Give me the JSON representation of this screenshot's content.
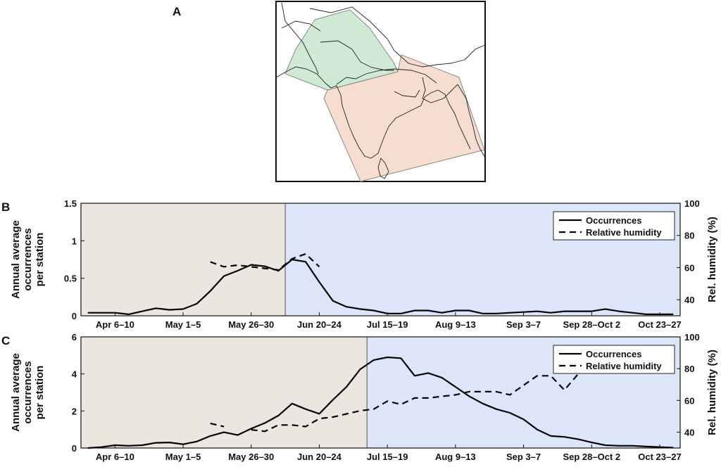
{
  "panels": {
    "a": {
      "letter": "A",
      "map": {
        "region_north_color": "#cfe9d4",
        "region_south_color": "#f7ddd0"
      }
    },
    "b": {
      "letter": "B"
    },
    "c": {
      "letter": "C"
    }
  },
  "chart_data": [
    {
      "type": "line",
      "panel": "B",
      "ylabel_lines": [
        "Annual average",
        "occurrences",
        "per station"
      ],
      "y2label": "Rel. humidity (%)",
      "ylim": [
        0,
        1.5
      ],
      "y2lim": [
        30,
        100
      ],
      "y_ticks": [
        "0",
        "0.5",
        "1",
        "1.5"
      ],
      "y_tick_values": [
        0,
        0.5,
        1,
        1.5
      ],
      "y2_ticks": [
        "40",
        "60",
        "80",
        "100"
      ],
      "y2_tick_values": [
        40,
        60,
        80,
        100
      ],
      "x_ticks": [
        "Apr 6–10",
        "May 1–5",
        "May 26–30",
        "Jun 20–24",
        "Jul 15–19",
        "Aug 9–13",
        "Sep 3–7",
        "Sep 28–Oct 2",
        "Oct 23–27"
      ],
      "x_tick_index": [
        2,
        7,
        12,
        17,
        22,
        27,
        32,
        37,
        42
      ],
      "period_count": 44,
      "shading": {
        "split_index": 14.5,
        "pre_color": "#ebe6e0",
        "post_color": "#dde5f8"
      },
      "legend": {
        "position": "top-right",
        "entries": [
          "Occurrences",
          "Relative humidity"
        ]
      },
      "series": [
        {
          "name": "Occurrences",
          "style": "solid",
          "values": [
            0.04,
            0.04,
            0.04,
            0.02,
            0.06,
            0.1,
            0.08,
            0.09,
            0.16,
            0.33,
            0.53,
            0.6,
            0.68,
            0.66,
            0.6,
            0.75,
            0.72,
            0.45,
            0.2,
            0.12,
            0.09,
            0.07,
            0.03,
            0.03,
            0.07,
            0.07,
            0.04,
            0.07,
            0.07,
            0.03,
            0.03,
            0.04,
            0.05,
            0.06,
            0.04,
            0.06,
            0.06,
            0.06,
            0.09,
            0.06,
            0.04,
            0.02,
            0.02,
            0.02
          ]
        },
        {
          "name": "Relative humidity",
          "style": "dashed",
          "start_index": 9,
          "values": [
            63.5,
            60.5,
            61.5,
            60.5,
            59.5,
            58.5,
            65.5,
            68.5,
            60.5
          ]
        }
      ]
    },
    {
      "type": "line",
      "panel": "C",
      "ylabel_lines": [
        "Annual average",
        "occurrences",
        "per station"
      ],
      "y2label": "Rel. humidity (%)",
      "ylim": [
        0,
        6
      ],
      "y2lim": [
        30,
        100
      ],
      "y_ticks": [
        "0",
        "2",
        "4",
        "6"
      ],
      "y_tick_values": [
        0,
        2,
        4,
        6
      ],
      "y2_ticks": [
        "40",
        "60",
        "80",
        "100"
      ],
      "y2_tick_values": [
        40,
        60,
        80,
        100
      ],
      "x_ticks": [
        "Apr 6–10",
        "May 1–5",
        "May 26–30",
        "Jun 20–24",
        "Jul 15–19",
        "Aug 9–13",
        "Sep 3–7",
        "Sep 28–Oct 2",
        "Oct 23–27"
      ],
      "x_tick_index": [
        2,
        7,
        12,
        17,
        22,
        27,
        32,
        37,
        42
      ],
      "period_count": 44,
      "shading": {
        "split_index": 20.5,
        "pre_color": "#ebe6e0",
        "post_color": "#dde5f8"
      },
      "legend": {
        "position": "top-right",
        "entries": [
          "Occurrences",
          "Relative humidity"
        ]
      },
      "series": [
        {
          "name": "Occurrences",
          "style": "solid",
          "values": [
            0.0,
            0.05,
            0.15,
            0.12,
            0.15,
            0.28,
            0.3,
            0.2,
            0.35,
            0.65,
            0.85,
            0.7,
            1.05,
            1.35,
            1.75,
            2.4,
            2.1,
            1.85,
            2.6,
            3.3,
            4.25,
            4.75,
            4.9,
            4.85,
            3.9,
            4.05,
            3.8,
            3.3,
            2.8,
            2.4,
            2.1,
            1.9,
            1.55,
            1.0,
            0.65,
            0.6,
            0.48,
            0.3,
            0.15,
            0.12,
            0.12,
            0.08,
            0.05,
            0.02
          ]
        },
        {
          "name": "Relative humidity",
          "style": "dashed",
          "start_index": 9,
          "values": [
            45.5,
            43.5,
            null,
            41.5,
            40.5,
            44.5,
            44.5,
            43.5,
            48.5,
            49.5,
            51.5,
            53.5,
            54.5,
            59.5,
            57.5,
            61.5,
            61.5,
            62.5,
            63.5,
            65.5,
            65.5,
            65.5,
            63.5,
            69.5,
            75.5,
            75.5,
            66.5,
            76.5
          ]
        }
      ]
    }
  ]
}
